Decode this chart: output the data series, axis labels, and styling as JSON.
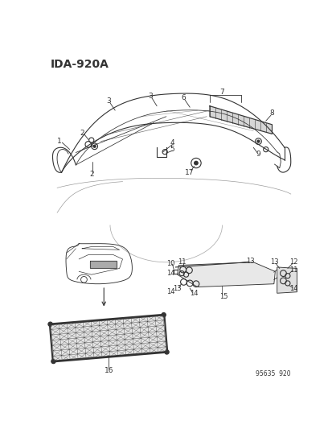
{
  "title": "IDA-920A",
  "subtitle": "95635 920",
  "bg_color": "#ffffff",
  "lc": "#333333",
  "lc_light": "#888888"
}
